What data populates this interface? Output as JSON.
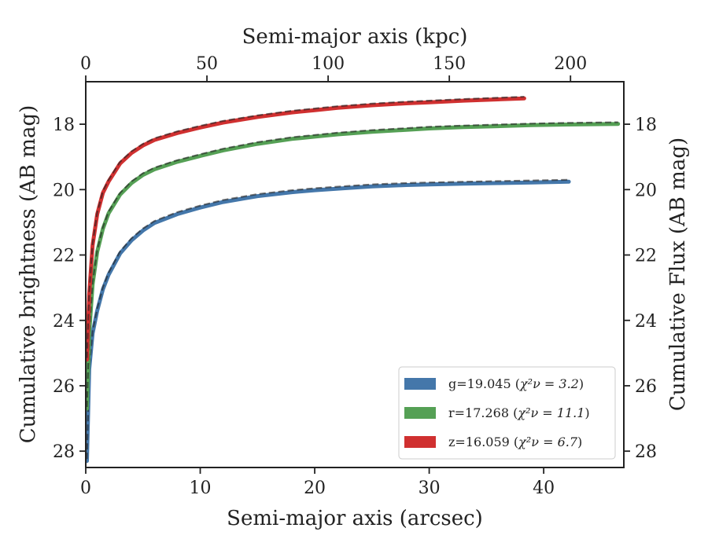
{
  "chart_data": {
    "type": "line",
    "title": "",
    "xlabel": "Semi-major axis (arcsec)",
    "x2label": "Semi-major axis (kpc)",
    "ylabel": "Cumulative brightness (AB mag)",
    "y2label": "Cumulative Flux (AB mag)",
    "xlim": [
      0,
      47
    ],
    "x2lim": [
      0,
      222
    ],
    "ylim": [
      28.5,
      16.7
    ],
    "y_inverted": true,
    "x_ticks": [
      0,
      10,
      20,
      30,
      40
    ],
    "x2_ticks": [
      0,
      50,
      100,
      150,
      200
    ],
    "y_ticks": [
      18,
      20,
      22,
      24,
      26,
      28
    ],
    "grid": false,
    "legend_position": "bottom-right",
    "legend": [
      {
        "band": "g",
        "label_main": "g=19.045 (",
        "label_stat": "χ²ν = 3.2",
        "label_end": ")",
        "color": "#4477aa"
      },
      {
        "band": "r",
        "label_main": "r=17.268 (",
        "label_stat": "χ²ν = 11.1",
        "label_end": ")",
        "color": "#55a055"
      },
      {
        "band": "z",
        "label_main": "z=16.059 (",
        "label_stat": "χ²ν = 6.7",
        "label_end": ")",
        "color": "#d03030"
      }
    ],
    "series": [
      {
        "name": "g",
        "color": "#4477aa",
        "model_color": "#222222",
        "x": [
          0.1,
          0.3,
          0.6,
          1,
          1.5,
          2,
          3,
          4,
          5,
          6,
          8,
          10,
          12,
          15,
          18,
          20,
          22,
          25,
          28,
          30,
          33,
          36,
          39,
          42.2
        ],
        "y": [
          28.3,
          25.5,
          24.4,
          23.7,
          23.05,
          22.6,
          21.95,
          21.55,
          21.25,
          21.02,
          20.75,
          20.55,
          20.38,
          20.2,
          20.08,
          20.02,
          19.97,
          19.9,
          19.86,
          19.84,
          19.82,
          19.8,
          19.78,
          19.76
        ],
        "model_offset": -0.06
      },
      {
        "name": "r",
        "color": "#55a055",
        "model_color": "#222222",
        "x": [
          0.1,
          0.3,
          0.6,
          1,
          1.5,
          2,
          3,
          4,
          5,
          6,
          8,
          10,
          12,
          15,
          18,
          20,
          22,
          25,
          28,
          30,
          33,
          36,
          39,
          42,
          46.5
        ],
        "y": [
          26.7,
          24.4,
          22.9,
          21.9,
          21.2,
          20.72,
          20.15,
          19.8,
          19.55,
          19.38,
          19.15,
          18.97,
          18.8,
          18.6,
          18.45,
          18.38,
          18.31,
          18.23,
          18.17,
          18.13,
          18.09,
          18.06,
          18.03,
          18.01,
          17.99
        ],
        "model_offset": -0.05
      },
      {
        "name": "z",
        "color": "#d03030",
        "model_color": "#222222",
        "x": [
          0.1,
          0.3,
          0.6,
          1,
          1.5,
          2,
          3,
          4,
          5,
          6,
          8,
          10,
          12,
          15,
          18,
          20,
          22,
          25,
          28,
          30,
          33,
          36,
          38.3
        ],
        "y": [
          25.2,
          23.2,
          21.7,
          20.75,
          20.1,
          19.75,
          19.2,
          18.88,
          18.65,
          18.48,
          18.27,
          18.1,
          17.95,
          17.78,
          17.64,
          17.57,
          17.5,
          17.42,
          17.36,
          17.33,
          17.28,
          17.24,
          17.21
        ],
        "model_offset": -0.05
      }
    ]
  }
}
